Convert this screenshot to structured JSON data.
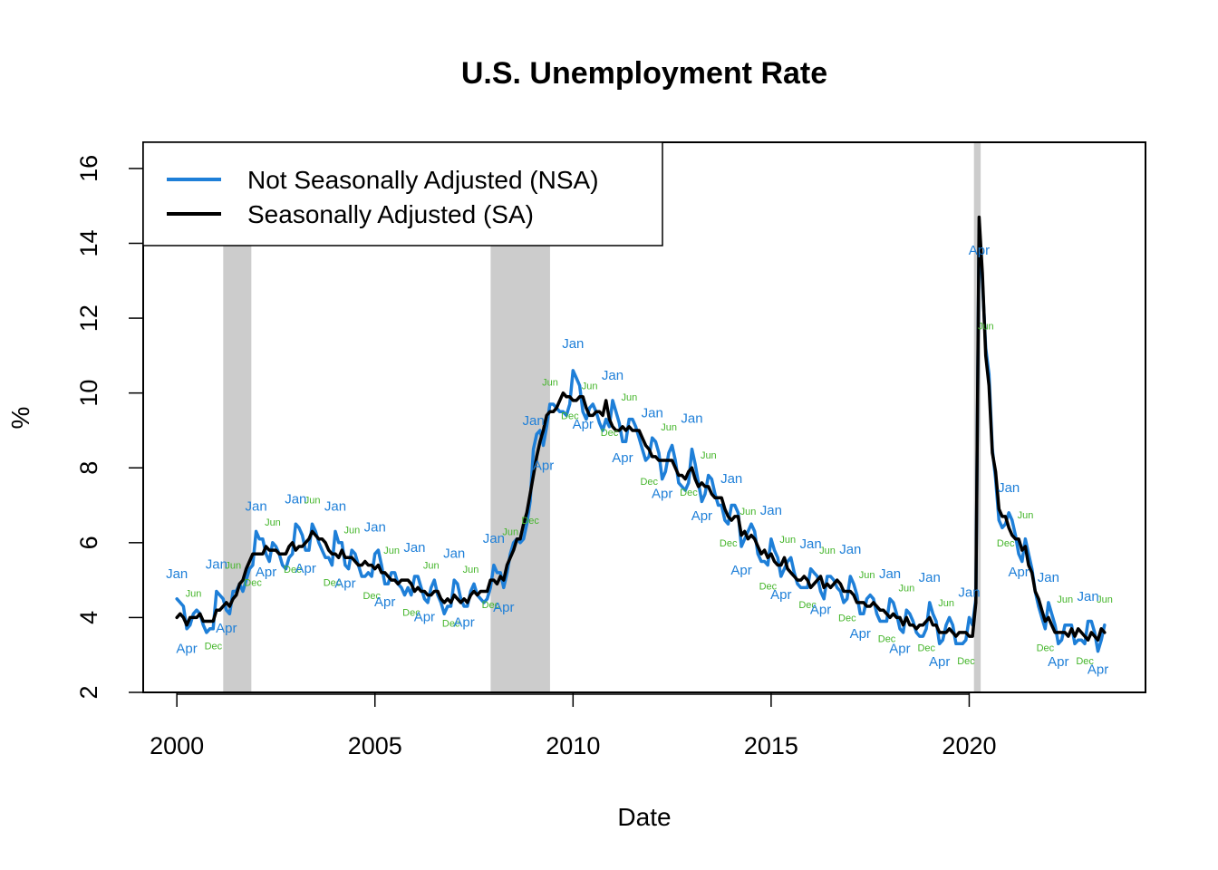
{
  "chart_data": {
    "type": "line",
    "title": "U.S. Unemployment Rate",
    "xlabel": "Date",
    "ylabel": "%",
    "xlim": [
      1999.15,
      2024.45
    ],
    "ylim": [
      2,
      16.7
    ],
    "x_ticks": [
      2000,
      2005,
      2010,
      2015,
      2020
    ],
    "y_ticks": [
      2,
      4,
      6,
      8,
      10,
      12,
      14,
      16
    ],
    "legend_position": "top-left",
    "recessions": [
      {
        "start": 2001.17,
        "end": 2001.88
      },
      {
        "start": 2007.92,
        "end": 2009.42
      },
      {
        "start": 2020.12,
        "end": 2020.29
      }
    ],
    "colors": {
      "nsa": "#1E7FD8",
      "sa": "#000000",
      "recession": "#CCCCCC",
      "jan_apr_labels": "#1E7FD8",
      "jun_dec_labels": "#44B52A"
    },
    "legend": [
      {
        "label": "Not Seasonally Adjusted (NSA)",
        "color": "#1E7FD8"
      },
      {
        "label": "Seasonally Adjusted (SA)",
        "color": "#000000"
      }
    ],
    "series": [
      {
        "name": "Not Seasonally Adjusted (NSA)",
        "key": "nsa",
        "start": 2000,
        "monthly": true,
        "values": [
          4.5,
          4.4,
          4.3,
          3.7,
          3.8,
          4.1,
          4.2,
          4.1,
          3.8,
          3.6,
          3.7,
          3.7,
          4.7,
          4.6,
          4.5,
          4.2,
          4.1,
          4.7,
          4.7,
          4.9,
          4.7,
          5.0,
          5.3,
          5.4,
          6.3,
          6.1,
          6.1,
          5.7,
          5.5,
          6.0,
          5.9,
          5.7,
          5.4,
          5.3,
          5.6,
          5.7,
          6.5,
          6.4,
          6.2,
          5.8,
          5.8,
          6.5,
          6.3,
          6.0,
          5.8,
          5.6,
          5.6,
          5.4,
          6.3,
          6.0,
          6.0,
          5.4,
          5.3,
          5.8,
          5.7,
          5.4,
          5.1,
          5.1,
          5.2,
          5.1,
          5.7,
          5.8,
          5.4,
          4.9,
          4.9,
          5.2,
          5.2,
          4.9,
          4.8,
          4.6,
          4.8,
          4.6,
          5.1,
          5.1,
          4.8,
          4.5,
          4.4,
          4.8,
          5.0,
          4.6,
          4.4,
          4.1,
          4.3,
          4.3,
          5.0,
          4.9,
          4.5,
          4.3,
          4.3,
          4.7,
          4.9,
          4.6,
          4.5,
          4.4,
          4.5,
          4.8,
          5.4,
          5.2,
          5.2,
          4.8,
          5.2,
          5.7,
          6.0,
          6.1,
          6.0,
          6.1,
          6.5,
          7.1,
          8.5,
          8.9,
          9.0,
          8.6,
          9.1,
          9.7,
          9.7,
          9.6,
          9.5,
          9.5,
          9.4,
          9.7,
          10.6,
          10.4,
          10.2,
          9.5,
          9.3,
          9.6,
          9.7,
          9.5,
          9.2,
          9.0,
          9.3,
          9.1,
          9.8,
          9.5,
          9.2,
          8.7,
          8.7,
          9.3,
          9.3,
          9.1,
          8.8,
          8.5,
          8.2,
          8.3,
          8.8,
          8.7,
          8.4,
          7.7,
          7.9,
          8.4,
          8.6,
          8.2,
          7.6,
          7.5,
          7.4,
          7.6,
          8.5,
          8.1,
          7.6,
          7.1,
          7.3,
          7.8,
          7.7,
          7.3,
          7.0,
          7.0,
          6.6,
          6.5,
          7.0,
          7.0,
          6.8,
          5.9,
          6.1,
          6.3,
          6.5,
          6.3,
          5.7,
          5.5,
          5.5,
          5.4,
          6.1,
          5.8,
          5.6,
          5.1,
          5.3,
          5.5,
          5.6,
          5.2,
          4.9,
          4.8,
          4.8,
          4.8,
          5.3,
          5.2,
          5.1,
          4.7,
          4.5,
          5.1,
          5.1,
          5.0,
          4.8,
          4.7,
          4.4,
          4.5,
          5.1,
          4.9,
          4.6,
          4.1,
          4.1,
          4.5,
          4.6,
          4.5,
          4.1,
          3.9,
          3.9,
          3.9,
          4.5,
          4.4,
          4.1,
          3.7,
          3.6,
          4.2,
          4.1,
          3.9,
          3.6,
          3.5,
          3.5,
          3.7,
          4.4,
          4.1,
          3.9,
          3.3,
          3.4,
          3.8,
          4.0,
          3.8,
          3.3,
          3.3,
          3.3,
          3.4,
          4.0,
          3.8,
          4.5,
          14.4,
          13.0,
          11.2,
          10.5,
          8.5,
          7.7,
          6.6,
          6.4,
          6.5,
          6.8,
          6.6,
          6.2,
          5.7,
          5.5,
          6.1,
          5.7,
          5.3,
          4.7,
          4.3,
          4.0,
          3.7,
          4.4,
          4.1,
          3.8,
          3.3,
          3.4,
          3.8,
          3.8,
          3.8,
          3.3,
          3.4,
          3.4,
          3.3,
          3.9,
          3.9,
          3.6,
          3.1,
          3.4,
          3.8
        ]
      },
      {
        "name": "Seasonally Adjusted (SA)",
        "key": "sa",
        "start": 2000,
        "monthly": true,
        "values": [
          4.0,
          4.1,
          4.0,
          3.8,
          4.0,
          4.0,
          4.0,
          4.1,
          3.9,
          3.9,
          3.9,
          3.9,
          4.2,
          4.2,
          4.3,
          4.4,
          4.3,
          4.5,
          4.6,
          4.9,
          5.0,
          5.3,
          5.5,
          5.7,
          5.7,
          5.7,
          5.7,
          5.9,
          5.8,
          5.8,
          5.8,
          5.7,
          5.7,
          5.7,
          5.9,
          6.0,
          5.8,
          5.9,
          5.9,
          6.0,
          6.1,
          6.3,
          6.2,
          6.1,
          6.1,
          6.0,
          5.8,
          5.7,
          5.7,
          5.6,
          5.8,
          5.6,
          5.6,
          5.6,
          5.5,
          5.4,
          5.4,
          5.5,
          5.4,
          5.4,
          5.3,
          5.4,
          5.2,
          5.2,
          5.1,
          5.0,
          5.0,
          4.9,
          5.0,
          5.0,
          5.0,
          4.9,
          4.7,
          4.8,
          4.7,
          4.7,
          4.6,
          4.6,
          4.7,
          4.7,
          4.5,
          4.4,
          4.5,
          4.4,
          4.6,
          4.5,
          4.4,
          4.5,
          4.4,
          4.6,
          4.7,
          4.6,
          4.7,
          4.7,
          4.7,
          5.0,
          5.0,
          4.9,
          5.1,
          5.0,
          5.4,
          5.6,
          5.8,
          6.1,
          6.1,
          6.5,
          6.8,
          7.3,
          7.8,
          8.3,
          8.7,
          9.0,
          9.4,
          9.5,
          9.5,
          9.6,
          9.8,
          10.0,
          9.9,
          9.9,
          9.8,
          9.8,
          9.9,
          9.9,
          9.6,
          9.4,
          9.4,
          9.5,
          9.5,
          9.4,
          9.8,
          9.3,
          9.1,
          9.0,
          9.0,
          9.1,
          9.0,
          9.1,
          9.0,
          9.0,
          9.0,
          8.8,
          8.6,
          8.5,
          8.3,
          8.3,
          8.2,
          8.2,
          8.2,
          8.2,
          8.2,
          8.0,
          7.8,
          7.8,
          7.7,
          7.9,
          8.0,
          7.7,
          7.5,
          7.6,
          7.5,
          7.5,
          7.3,
          7.2,
          7.2,
          7.2,
          6.9,
          6.7,
          6.6,
          6.7,
          6.7,
          6.2,
          6.3,
          6.1,
          6.2,
          6.1,
          5.9,
          5.7,
          5.8,
          5.6,
          5.7,
          5.5,
          5.4,
          5.4,
          5.6,
          5.3,
          5.2,
          5.1,
          5.0,
          5.0,
          5.1,
          5.0,
          4.8,
          4.9,
          5.0,
          5.1,
          4.8,
          4.9,
          4.8,
          4.9,
          5.0,
          4.9,
          4.7,
          4.7,
          4.7,
          4.6,
          4.4,
          4.4,
          4.4,
          4.3,
          4.3,
          4.4,
          4.3,
          4.2,
          4.2,
          4.1,
          4.0,
          4.1,
          4.0,
          4.0,
          3.8,
          4.0,
          3.8,
          3.8,
          3.7,
          3.8,
          3.8,
          3.9,
          4.0,
          3.8,
          3.8,
          3.6,
          3.6,
          3.6,
          3.7,
          3.6,
          3.5,
          3.6,
          3.6,
          3.6,
          3.5,
          3.5,
          4.4,
          14.7,
          13.2,
          11.0,
          10.2,
          8.4,
          7.9,
          6.9,
          6.7,
          6.7,
          6.4,
          6.2,
          6.1,
          6.1,
          5.8,
          5.9,
          5.4,
          5.2,
          4.7,
          4.5,
          4.2,
          3.9,
          4.0,
          3.8,
          3.6,
          3.6,
          3.6,
          3.6,
          3.5,
          3.7,
          3.5,
          3.7,
          3.6,
          3.5,
          3.4,
          3.6,
          3.5,
          3.4,
          3.7,
          3.6
        ]
      }
    ],
    "annotations": [
      {
        "text": "Jan",
        "x": 2000.0,
        "y": 5.05,
        "cls": "blue"
      },
      {
        "text": "Jun",
        "x": 2000.42,
        "y": 4.55,
        "cls": "green"
      },
      {
        "text": "Apr",
        "x": 2000.25,
        "y": 3.05,
        "cls": "blue"
      },
      {
        "text": "Dec",
        "x": 2000.92,
        "y": 3.15,
        "cls": "green"
      },
      {
        "text": "Jan",
        "x": 2001.0,
        "y": 5.3,
        "cls": "blue"
      },
      {
        "text": "Jun",
        "x": 2001.42,
        "y": 5.3,
        "cls": "green"
      },
      {
        "text": "Apr",
        "x": 2001.25,
        "y": 3.6,
        "cls": "blue"
      },
      {
        "text": "Dec",
        "x": 2001.92,
        "y": 4.85,
        "cls": "green"
      },
      {
        "text": "Jan",
        "x": 2002.0,
        "y": 6.85,
        "cls": "blue"
      },
      {
        "text": "Jun",
        "x": 2002.42,
        "y": 6.45,
        "cls": "green"
      },
      {
        "text": "Apr",
        "x": 2002.25,
        "y": 5.1,
        "cls": "blue"
      },
      {
        "text": "Dec",
        "x": 2002.92,
        "y": 5.2,
        "cls": "green"
      },
      {
        "text": "Jan",
        "x": 2003.0,
        "y": 7.05,
        "cls": "blue"
      },
      {
        "text": "Jun",
        "x": 2003.42,
        "y": 7.05,
        "cls": "green"
      },
      {
        "text": "Apr",
        "x": 2003.25,
        "y": 5.2,
        "cls": "blue"
      },
      {
        "text": "Dec",
        "x": 2003.92,
        "y": 4.85,
        "cls": "green"
      },
      {
        "text": "Jan",
        "x": 2004.0,
        "y": 6.85,
        "cls": "blue"
      },
      {
        "text": "Jun",
        "x": 2004.42,
        "y": 6.25,
        "cls": "green"
      },
      {
        "text": "Apr",
        "x": 2004.25,
        "y": 4.8,
        "cls": "blue"
      },
      {
        "text": "Dec",
        "x": 2004.92,
        "y": 4.5,
        "cls": "green"
      },
      {
        "text": "Jan",
        "x": 2005.0,
        "y": 6.3,
        "cls": "blue"
      },
      {
        "text": "Jun",
        "x": 2005.42,
        "y": 5.7,
        "cls": "green"
      },
      {
        "text": "Apr",
        "x": 2005.25,
        "y": 4.3,
        "cls": "blue"
      },
      {
        "text": "Dec",
        "x": 2005.92,
        "y": 4.05,
        "cls": "green"
      },
      {
        "text": "Jan",
        "x": 2006.0,
        "y": 5.75,
        "cls": "blue"
      },
      {
        "text": "Jun",
        "x": 2006.42,
        "y": 5.3,
        "cls": "green"
      },
      {
        "text": "Apr",
        "x": 2006.25,
        "y": 3.9,
        "cls": "blue"
      },
      {
        "text": "Dec",
        "x": 2006.92,
        "y": 3.75,
        "cls": "green"
      },
      {
        "text": "Jan",
        "x": 2007.0,
        "y": 5.6,
        "cls": "blue"
      },
      {
        "text": "Jun",
        "x": 2007.42,
        "y": 5.2,
        "cls": "green"
      },
      {
        "text": "Apr",
        "x": 2007.25,
        "y": 3.75,
        "cls": "blue"
      },
      {
        "text": "Dec",
        "x": 2007.92,
        "y": 4.25,
        "cls": "green"
      },
      {
        "text": "Jan",
        "x": 2008.0,
        "y": 6.0,
        "cls": "blue"
      },
      {
        "text": "Jun",
        "x": 2008.42,
        "y": 6.2,
        "cls": "green"
      },
      {
        "text": "Apr",
        "x": 2008.25,
        "y": 4.15,
        "cls": "blue"
      },
      {
        "text": "Dec",
        "x": 2008.92,
        "y": 6.5,
        "cls": "green"
      },
      {
        "text": "Jan",
        "x": 2009.0,
        "y": 9.15,
        "cls": "blue"
      },
      {
        "text": "Jun",
        "x": 2009.42,
        "y": 10.2,
        "cls": "green"
      },
      {
        "text": "Apr",
        "x": 2009.25,
        "y": 7.95,
        "cls": "blue"
      },
      {
        "text": "Dec",
        "x": 2009.92,
        "y": 9.3,
        "cls": "green"
      },
      {
        "text": "Jan",
        "x": 2010.0,
        "y": 11.2,
        "cls": "blue"
      },
      {
        "text": "Jun",
        "x": 2010.42,
        "y": 10.1,
        "cls": "green"
      },
      {
        "text": "Apr",
        "x": 2010.25,
        "y": 9.05,
        "cls": "blue"
      },
      {
        "text": "Dec",
        "x": 2010.92,
        "y": 8.85,
        "cls": "green"
      },
      {
        "text": "Jan",
        "x": 2011.0,
        "y": 10.35,
        "cls": "blue"
      },
      {
        "text": "Jun",
        "x": 2011.42,
        "y": 9.8,
        "cls": "green"
      },
      {
        "text": "Apr",
        "x": 2011.25,
        "y": 8.15,
        "cls": "blue"
      },
      {
        "text": "Dec",
        "x": 2011.92,
        "y": 7.55,
        "cls": "green"
      },
      {
        "text": "Jan",
        "x": 2012.0,
        "y": 9.35,
        "cls": "blue"
      },
      {
        "text": "Jun",
        "x": 2012.42,
        "y": 9.0,
        "cls": "green"
      },
      {
        "text": "Apr",
        "x": 2012.25,
        "y": 7.2,
        "cls": "blue"
      },
      {
        "text": "Dec",
        "x": 2012.92,
        "y": 7.25,
        "cls": "green"
      },
      {
        "text": "Jan",
        "x": 2013.0,
        "y": 9.2,
        "cls": "blue"
      },
      {
        "text": "Jun",
        "x": 2013.42,
        "y": 8.25,
        "cls": "green"
      },
      {
        "text": "Apr",
        "x": 2013.25,
        "y": 6.6,
        "cls": "blue"
      },
      {
        "text": "Dec",
        "x": 2013.92,
        "y": 5.9,
        "cls": "green"
      },
      {
        "text": "Jan",
        "x": 2014.0,
        "y": 7.6,
        "cls": "blue"
      },
      {
        "text": "Jun",
        "x": 2014.42,
        "y": 6.75,
        "cls": "green"
      },
      {
        "text": "Apr",
        "x": 2014.25,
        "y": 5.15,
        "cls": "blue"
      },
      {
        "text": "Dec",
        "x": 2014.92,
        "y": 4.75,
        "cls": "green"
      },
      {
        "text": "Jan",
        "x": 2015.0,
        "y": 6.75,
        "cls": "blue"
      },
      {
        "text": "Jun",
        "x": 2015.42,
        "y": 6.0,
        "cls": "green"
      },
      {
        "text": "Apr",
        "x": 2015.25,
        "y": 4.5,
        "cls": "blue"
      },
      {
        "text": "Dec",
        "x": 2015.92,
        "y": 4.25,
        "cls": "green"
      },
      {
        "text": "Jan",
        "x": 2016.0,
        "y": 5.85,
        "cls": "blue"
      },
      {
        "text": "Jun",
        "x": 2016.42,
        "y": 5.7,
        "cls": "green"
      },
      {
        "text": "Apr",
        "x": 2016.25,
        "y": 4.1,
        "cls": "blue"
      },
      {
        "text": "Dec",
        "x": 2016.92,
        "y": 3.9,
        "cls": "green"
      },
      {
        "text": "Jan",
        "x": 2017.0,
        "y": 5.7,
        "cls": "blue"
      },
      {
        "text": "Jun",
        "x": 2017.42,
        "y": 5.05,
        "cls": "green"
      },
      {
        "text": "Apr",
        "x": 2017.25,
        "y": 3.45,
        "cls": "blue"
      },
      {
        "text": "Dec",
        "x": 2017.92,
        "y": 3.35,
        "cls": "green"
      },
      {
        "text": "Jan",
        "x": 2018.0,
        "y": 5.05,
        "cls": "blue"
      },
      {
        "text": "Jun",
        "x": 2018.42,
        "y": 4.7,
        "cls": "green"
      },
      {
        "text": "Apr",
        "x": 2018.25,
        "y": 3.05,
        "cls": "blue"
      },
      {
        "text": "Dec",
        "x": 2018.92,
        "y": 3.1,
        "cls": "green"
      },
      {
        "text": "Jan",
        "x": 2019.0,
        "y": 4.95,
        "cls": "blue"
      },
      {
        "text": "Jun",
        "x": 2019.42,
        "y": 4.3,
        "cls": "green"
      },
      {
        "text": "Apr",
        "x": 2019.25,
        "y": 2.7,
        "cls": "blue"
      },
      {
        "text": "Dec",
        "x": 2019.92,
        "y": 2.75,
        "cls": "green"
      },
      {
        "text": "Jan",
        "x": 2020.0,
        "y": 4.55,
        "cls": "blue"
      },
      {
        "text": "Jun",
        "x": 2020.42,
        "y": 11.7,
        "cls": "green"
      },
      {
        "text": "Apr",
        "x": 2020.25,
        "y": 13.7,
        "cls": "blue"
      },
      {
        "text": "Dec",
        "x": 2020.92,
        "y": 5.9,
        "cls": "green"
      },
      {
        "text": "Jan",
        "x": 2021.0,
        "y": 7.35,
        "cls": "blue"
      },
      {
        "text": "Jun",
        "x": 2021.42,
        "y": 6.65,
        "cls": "green"
      },
      {
        "text": "Apr",
        "x": 2021.25,
        "y": 5.1,
        "cls": "blue"
      },
      {
        "text": "Dec",
        "x": 2021.92,
        "y": 3.1,
        "cls": "green"
      },
      {
        "text": "Jan",
        "x": 2022.0,
        "y": 4.95,
        "cls": "blue"
      },
      {
        "text": "Jun",
        "x": 2022.42,
        "y": 4.4,
        "cls": "green"
      },
      {
        "text": "Apr",
        "x": 2022.25,
        "y": 2.7,
        "cls": "blue"
      },
      {
        "text": "Dec",
        "x": 2022.92,
        "y": 2.75,
        "cls": "green"
      },
      {
        "text": "Jan",
        "x": 2023.0,
        "y": 4.45,
        "cls": "blue"
      },
      {
        "text": "Jun",
        "x": 2023.42,
        "y": 4.4,
        "cls": "green"
      },
      {
        "text": "Apr",
        "x": 2023.25,
        "y": 2.5,
        "cls": "blue"
      }
    ]
  }
}
